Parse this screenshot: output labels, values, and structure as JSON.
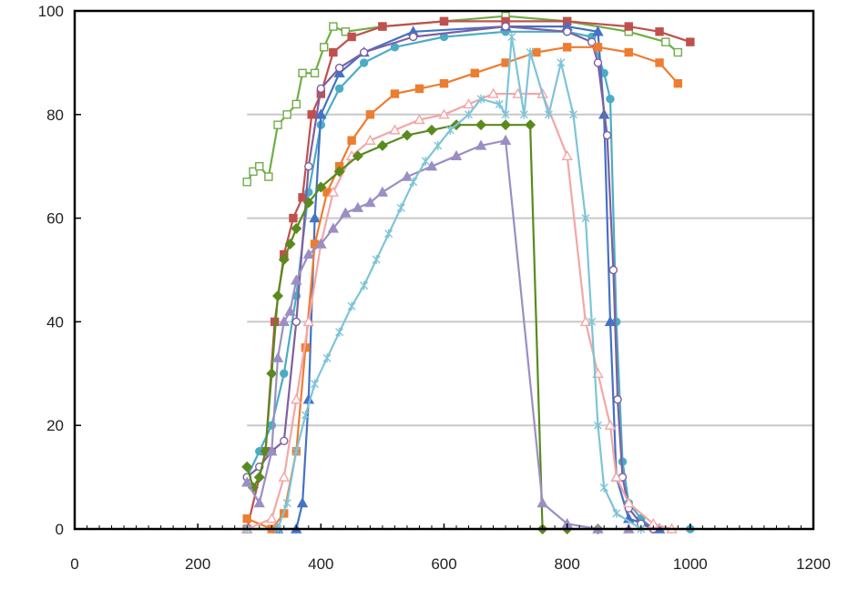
{
  "chart_data": {
    "type": "line",
    "title": "",
    "xlabel": "",
    "ylabel": "",
    "xlim": [
      0,
      1200
    ],
    "ylim": [
      0,
      100
    ],
    "x_ticks": [
      0,
      200,
      400,
      600,
      800,
      1000,
      1200
    ],
    "y_ticks": [
      0,
      20,
      40,
      60,
      80,
      100
    ],
    "grid": "horizontal",
    "legend": "none",
    "series": [
      {
        "color": "#70ad47",
        "marker": "square-open",
        "points": [
          [
            280,
            67
          ],
          [
            290,
            69
          ],
          [
            300,
            70
          ],
          [
            315,
            68
          ],
          [
            330,
            78
          ],
          [
            345,
            80
          ],
          [
            360,
            82
          ],
          [
            370,
            88
          ],
          [
            390,
            88
          ],
          [
            405,
            93
          ],
          [
            420,
            97
          ],
          [
            440,
            96
          ],
          [
            500,
            97
          ],
          [
            600,
            98
          ],
          [
            700,
            99
          ],
          [
            800,
            98
          ],
          [
            900,
            96
          ],
          [
            960,
            94
          ],
          [
            980,
            92
          ]
        ]
      },
      {
        "color": "#c0504d",
        "marker": "square",
        "points": [
          [
            280,
            0
          ],
          [
            310,
            15
          ],
          [
            325,
            40
          ],
          [
            340,
            53
          ],
          [
            355,
            60
          ],
          [
            370,
            64
          ],
          [
            385,
            80
          ],
          [
            400,
            84
          ],
          [
            420,
            92
          ],
          [
            450,
            95
          ],
          [
            500,
            97
          ],
          [
            600,
            98
          ],
          [
            700,
            98
          ],
          [
            800,
            98
          ],
          [
            900,
            97
          ],
          [
            950,
            96
          ],
          [
            1000,
            94
          ]
        ]
      },
      {
        "color": "#4bacc6",
        "marker": "circle",
        "points": [
          [
            280,
            10
          ],
          [
            300,
            15
          ],
          [
            320,
            20
          ],
          [
            340,
            30
          ],
          [
            360,
            45
          ],
          [
            380,
            65
          ],
          [
            400,
            78
          ],
          [
            430,
            85
          ],
          [
            470,
            90
          ],
          [
            520,
            93
          ],
          [
            600,
            95
          ],
          [
            700,
            96
          ],
          [
            800,
            96
          ],
          [
            840,
            95
          ],
          [
            860,
            88
          ],
          [
            870,
            83
          ],
          [
            880,
            40
          ],
          [
            890,
            13
          ],
          [
            900,
            5
          ],
          [
            920,
            2
          ],
          [
            940,
            0
          ],
          [
            1000,
            0
          ]
        ]
      },
      {
        "color": "#4472c4",
        "marker": "triangle",
        "points": [
          [
            280,
            0
          ],
          [
            330,
            0
          ],
          [
            360,
            0
          ],
          [
            370,
            5
          ],
          [
            380,
            25
          ],
          [
            390,
            60
          ],
          [
            400,
            80
          ],
          [
            430,
            88
          ],
          [
            470,
            92
          ],
          [
            550,
            96
          ],
          [
            700,
            97
          ],
          [
            800,
            97
          ],
          [
            850,
            96
          ],
          [
            860,
            80
          ],
          [
            870,
            40
          ],
          [
            880,
            10
          ],
          [
            900,
            2
          ],
          [
            950,
            0
          ]
        ]
      },
      {
        "color": "#7f5fa0",
        "marker": "circle-open",
        "points": [
          [
            280,
            10
          ],
          [
            300,
            12
          ],
          [
            320,
            15
          ],
          [
            340,
            17
          ],
          [
            360,
            40
          ],
          [
            380,
            70
          ],
          [
            400,
            85
          ],
          [
            430,
            89
          ],
          [
            470,
            92
          ],
          [
            550,
            95
          ],
          [
            700,
            97
          ],
          [
            800,
            96
          ],
          [
            840,
            94
          ],
          [
            850,
            90
          ],
          [
            865,
            76
          ],
          [
            875,
            50
          ],
          [
            882,
            25
          ],
          [
            890,
            10
          ],
          [
            900,
            4
          ],
          [
            920,
            1
          ],
          [
            940,
            0
          ]
        ]
      },
      {
        "color": "#ed7d31",
        "marker": "square",
        "points": [
          [
            280,
            2
          ],
          [
            320,
            0
          ],
          [
            340,
            3
          ],
          [
            360,
            15
          ],
          [
            375,
            35
          ],
          [
            390,
            55
          ],
          [
            410,
            65
          ],
          [
            430,
            70
          ],
          [
            450,
            75
          ],
          [
            480,
            80
          ],
          [
            520,
            84
          ],
          [
            560,
            85
          ],
          [
            600,
            86
          ],
          [
            650,
            88
          ],
          [
            700,
            90
          ],
          [
            750,
            92
          ],
          [
            800,
            93
          ],
          [
            850,
            93
          ],
          [
            900,
            92
          ],
          [
            950,
            90
          ],
          [
            980,
            86
          ]
        ]
      },
      {
        "color": "#f4a6a6",
        "marker": "triangle-open",
        "points": [
          [
            280,
            0
          ],
          [
            320,
            2
          ],
          [
            340,
            10
          ],
          [
            360,
            25
          ],
          [
            380,
            40
          ],
          [
            400,
            55
          ],
          [
            420,
            65
          ],
          [
            450,
            72
          ],
          [
            480,
            75
          ],
          [
            520,
            77
          ],
          [
            560,
            79
          ],
          [
            600,
            80
          ],
          [
            640,
            82
          ],
          [
            680,
            84
          ],
          [
            720,
            84
          ],
          [
            760,
            84
          ],
          [
            800,
            72
          ],
          [
            830,
            40
          ],
          [
            850,
            30
          ],
          [
            870,
            20
          ],
          [
            880,
            10
          ],
          [
            900,
            5
          ],
          [
            940,
            1
          ],
          [
            970,
            0
          ]
        ]
      },
      {
        "color": "#5a8a1e",
        "marker": "diamond",
        "points": [
          [
            280,
            12
          ],
          [
            290,
            8
          ],
          [
            300,
            10
          ],
          [
            310,
            15
          ],
          [
            320,
            30
          ],
          [
            330,
            45
          ],
          [
            340,
            52
          ],
          [
            350,
            55
          ],
          [
            360,
            58
          ],
          [
            380,
            63
          ],
          [
            400,
            66
          ],
          [
            430,
            69
          ],
          [
            460,
            72
          ],
          [
            500,
            74
          ],
          [
            540,
            76
          ],
          [
            580,
            77
          ],
          [
            620,
            78
          ],
          [
            660,
            78
          ],
          [
            700,
            78
          ],
          [
            740,
            78
          ],
          [
            760,
            0
          ],
          [
            800,
            0
          ],
          [
            850,
            0
          ]
        ]
      },
      {
        "color": "#9b8ec4",
        "marker": "triangle",
        "points": [
          [
            280,
            9
          ],
          [
            300,
            5
          ],
          [
            320,
            15
          ],
          [
            330,
            33
          ],
          [
            340,
            40
          ],
          [
            350,
            42
          ],
          [
            360,
            48
          ],
          [
            380,
            53
          ],
          [
            400,
            55
          ],
          [
            420,
            58
          ],
          [
            440,
            61
          ],
          [
            460,
            62
          ],
          [
            480,
            63
          ],
          [
            500,
            65
          ],
          [
            540,
            68
          ],
          [
            580,
            70
          ],
          [
            620,
            72
          ],
          [
            660,
            74
          ],
          [
            700,
            75
          ],
          [
            760,
            5
          ],
          [
            800,
            1
          ],
          [
            850,
            0
          ],
          [
            900,
            0
          ]
        ]
      },
      {
        "color": "#7ec4d8",
        "marker": "star",
        "points": [
          [
            280,
            0
          ],
          [
            330,
            0
          ],
          [
            345,
            5
          ],
          [
            360,
            15
          ],
          [
            375,
            22
          ],
          [
            390,
            28
          ],
          [
            410,
            33
          ],
          [
            430,
            38
          ],
          [
            450,
            43
          ],
          [
            470,
            47
          ],
          [
            490,
            52
          ],
          [
            510,
            57
          ],
          [
            530,
            62
          ],
          [
            550,
            67
          ],
          [
            570,
            71
          ],
          [
            590,
            74
          ],
          [
            610,
            77
          ],
          [
            640,
            80
          ],
          [
            660,
            83
          ],
          [
            690,
            82
          ],
          [
            700,
            80
          ],
          [
            710,
            95
          ],
          [
            730,
            80
          ],
          [
            740,
            92
          ],
          [
            770,
            80
          ],
          [
            790,
            90
          ],
          [
            810,
            80
          ],
          [
            830,
            60
          ],
          [
            840,
            40
          ],
          [
            850,
            20
          ],
          [
            860,
            8
          ],
          [
            880,
            3
          ],
          [
            920,
            0
          ]
        ]
      }
    ]
  }
}
